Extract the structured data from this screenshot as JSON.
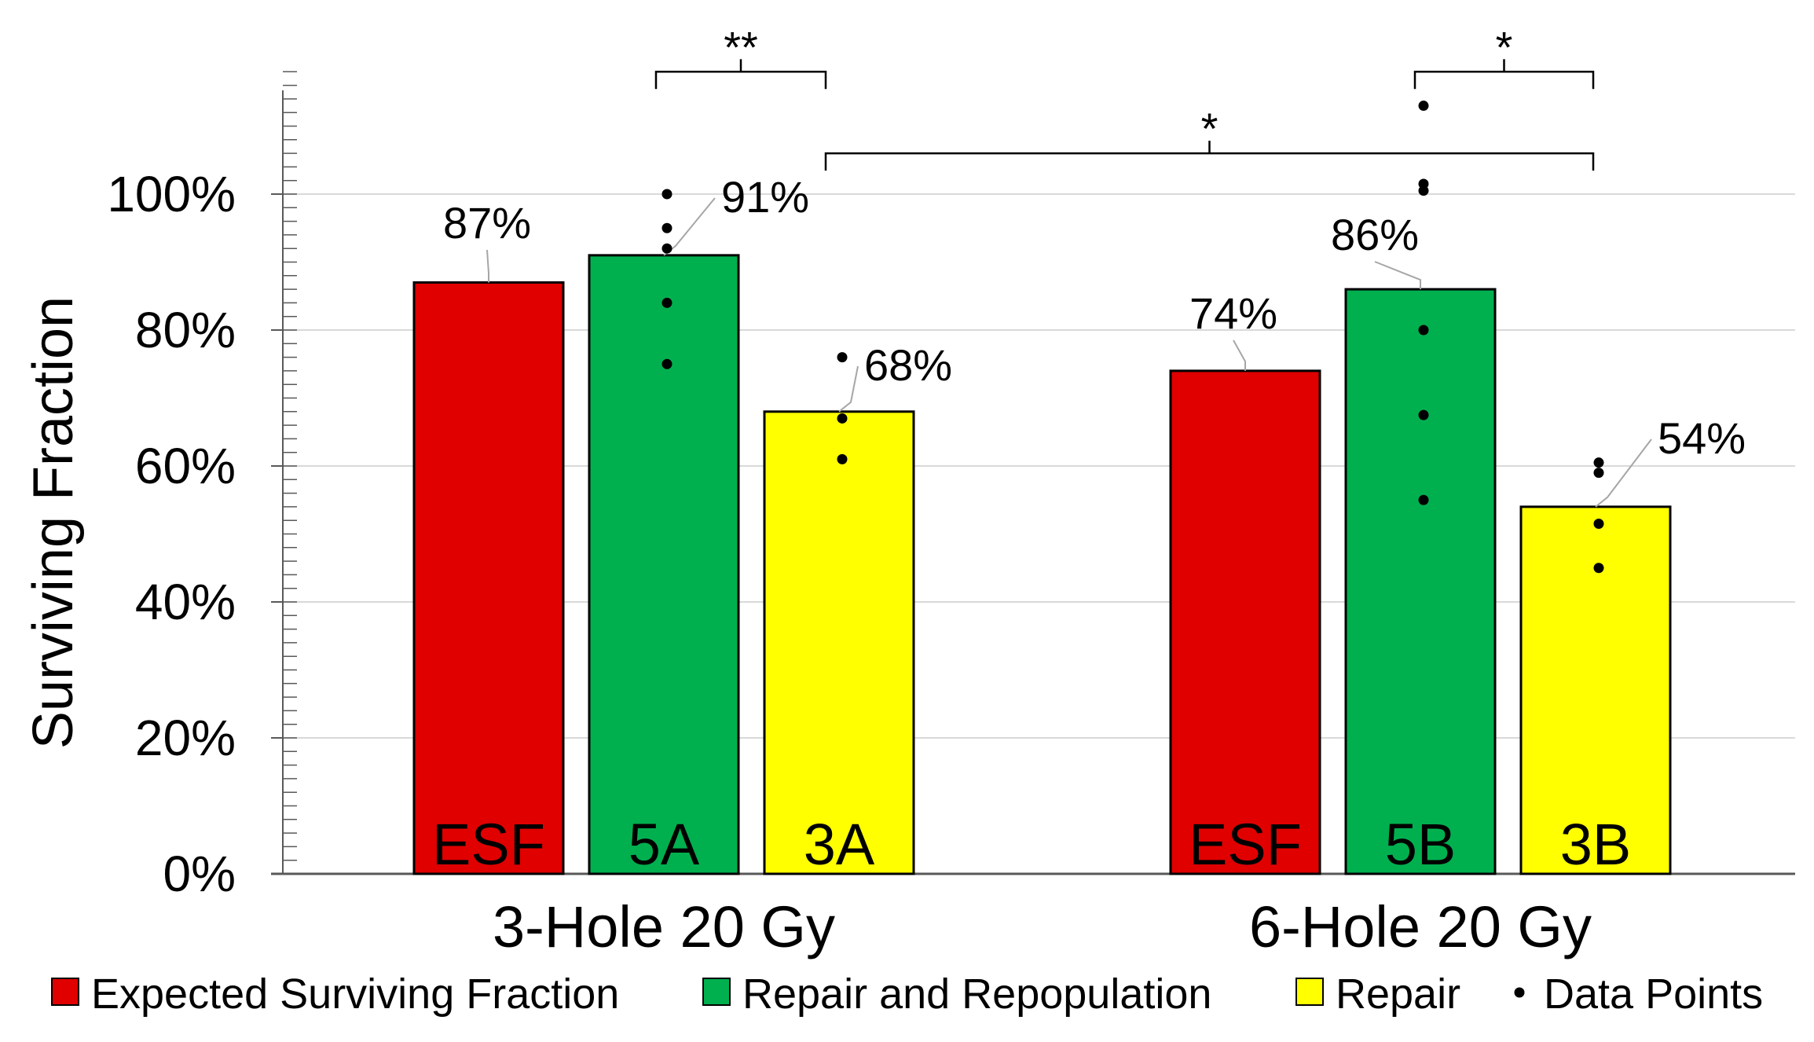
{
  "chart_data": {
    "type": "bar",
    "ylabel": "Surviving Fraction",
    "ylim": [
      0,
      100
    ],
    "yticks": [
      0,
      20,
      40,
      60,
      80,
      100
    ],
    "y_tick_suffix": "%",
    "grid": "horizontal",
    "legend_position": "bottom",
    "groups": [
      "3-Hole 20 Gy",
      "6-Hole 20 Gy"
    ],
    "series": [
      {
        "name": "Expected Surviving Fraction",
        "color": "#e00000",
        "bar_labels": [
          "ESF",
          "ESF"
        ],
        "values": [
          87,
          74
        ],
        "value_labels": [
          "87%",
          "74%"
        ]
      },
      {
        "name": "Repair and Repopulation",
        "color": "#00b04f",
        "bar_labels": [
          "5A",
          "5B"
        ],
        "values": [
          91,
          86
        ],
        "value_labels": [
          "91%",
          "86%"
        ]
      },
      {
        "name": "Repair",
        "color": "#ffff00",
        "bar_labels": [
          "3A",
          "3B"
        ],
        "values": [
          68,
          54
        ],
        "value_labels": [
          "68%",
          "54%"
        ]
      }
    ],
    "data_points": [
      {
        "group": 0,
        "series": 1,
        "values": [
          100,
          95,
          92,
          84,
          75
        ]
      },
      {
        "group": 0,
        "series": 2,
        "values": [
          76,
          67,
          61
        ]
      },
      {
        "group": 1,
        "series": 1,
        "values": [
          113,
          101.5,
          100.5,
          80,
          67.5,
          55
        ]
      },
      {
        "group": 1,
        "series": 2,
        "values": [
          60.5,
          59,
          51.5,
          45
        ]
      }
    ],
    "data_points_legend": "Data Points",
    "significance": [
      {
        "label": "**",
        "from": [
          0,
          1
        ],
        "to": [
          0,
          2
        ],
        "level": 118
      },
      {
        "label": "*",
        "from": [
          1,
          1
        ],
        "to": [
          1,
          2
        ],
        "level": 118
      },
      {
        "label": "*",
        "from": [
          0,
          2
        ],
        "to": [
          1,
          2
        ],
        "level": 106
      }
    ]
  }
}
